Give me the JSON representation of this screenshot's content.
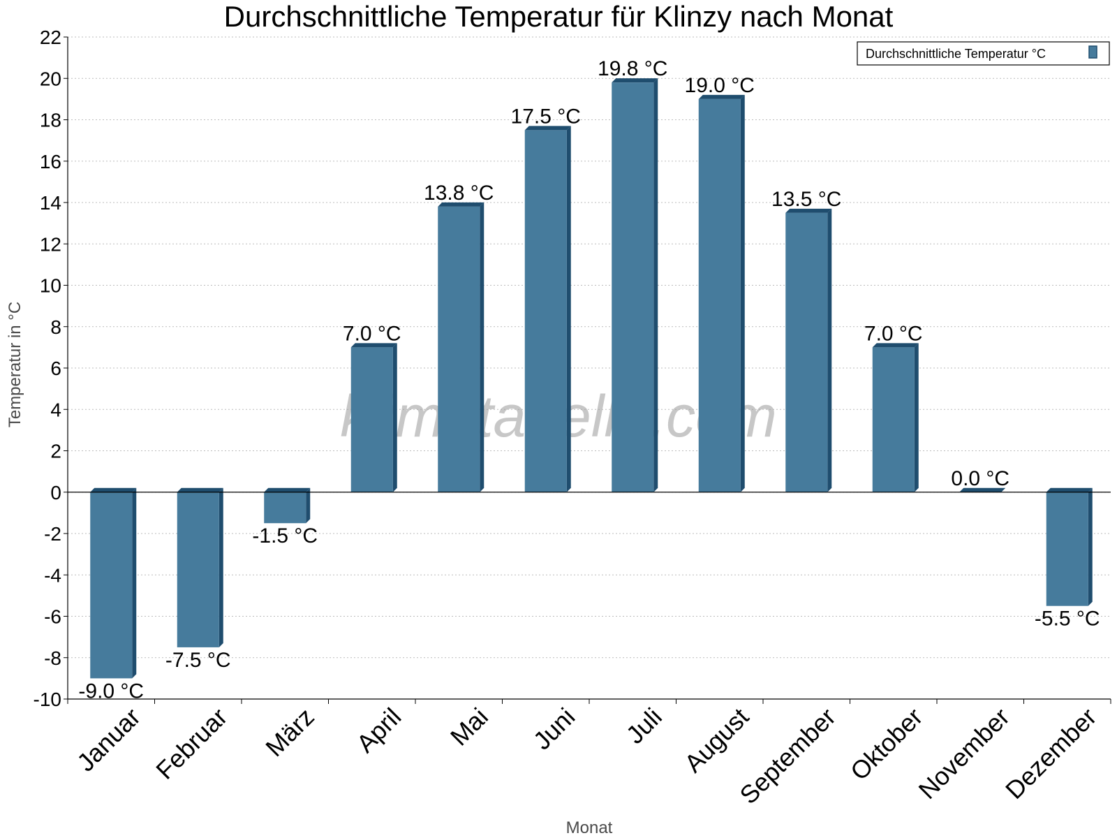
{
  "colors": {
    "bar_front": "#467b9c",
    "bar_side": "#1f4d6e",
    "bar_top": "#1f4d6e",
    "grid": "#bbbbbb",
    "axis": "#000000"
  },
  "watermark": "klimatabelle.com",
  "chart_data": {
    "type": "bar",
    "title": "Durchschnittliche Temperatur für Klinzy nach Monat",
    "xlabel": "Monat",
    "ylabel": "Temperatur in °C",
    "ylim": [
      -10,
      22
    ],
    "ytick_step": 2,
    "grid": true,
    "legend_position": "top-right",
    "categories": [
      "Januar",
      "Februar",
      "März",
      "April",
      "Mai",
      "Juni",
      "Juli",
      "August",
      "September",
      "Oktober",
      "November",
      "Dezember"
    ],
    "series": [
      {
        "name": "Durchschnittliche Temperatur °C",
        "values": [
          -9.0,
          -7.5,
          -1.5,
          7.0,
          13.8,
          17.5,
          19.8,
          19.0,
          13.5,
          7.0,
          0.0,
          -5.5
        ],
        "labels": [
          "-9.0 °C",
          "-7.5 °C",
          "-1.5 °C",
          "7.0 °C",
          "13.8 °C",
          "17.5 °C",
          "19.8 °C",
          "19.0 °C",
          "13.5 °C",
          "7.0 °C",
          "0.0 °C",
          "-5.5 °C"
        ]
      }
    ]
  }
}
